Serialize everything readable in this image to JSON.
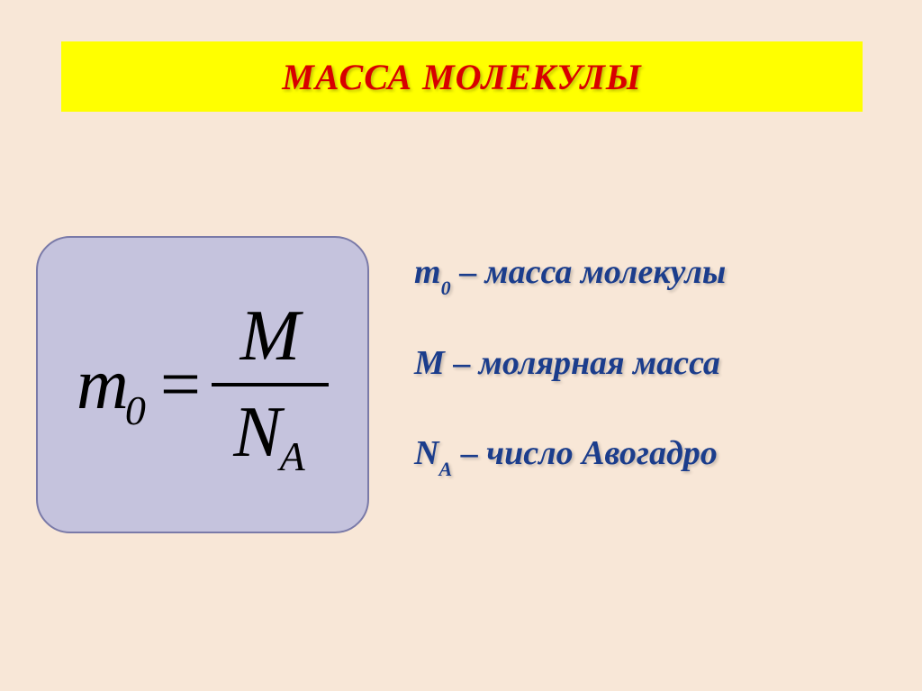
{
  "title": "МАССА   МОЛЕКУЛЫ",
  "title_color": "#d80000",
  "banner_bg": "#ffff00",
  "page_bg": "#f8e7d7",
  "formula": {
    "lhs_var": "m",
    "lhs_sub": "0",
    "eq": "=",
    "numerator": "M",
    "denom_var": "N",
    "denom_sub": "A",
    "box_bg": "#c5c3dd",
    "box_border": "#7a7aa8",
    "text_color": "#000000"
  },
  "legend": {
    "color": "#1b3d8c",
    "items": [
      {
        "symbol": "m",
        "sub": "0",
        "desc": "масса молекулы"
      },
      {
        "symbol": "M",
        "sub": "",
        "desc": "молярная масса"
      },
      {
        "symbol": "N",
        "sub": "A",
        "desc": "число Авогадро"
      }
    ]
  }
}
